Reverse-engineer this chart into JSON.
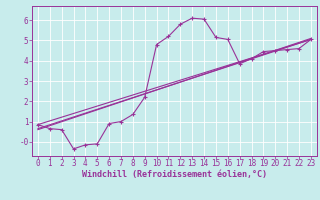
{
  "xlabel": "Windchill (Refroidissement éolien,°C)",
  "bg_color": "#c8ecec",
  "line_color": "#993399",
  "grid_color": "#ffffff",
  "xlim": [
    -0.5,
    23.5
  ],
  "ylim": [
    -0.7,
    6.7
  ],
  "xticks": [
    0,
    1,
    2,
    3,
    4,
    5,
    6,
    7,
    8,
    9,
    10,
    11,
    12,
    13,
    14,
    15,
    16,
    17,
    18,
    19,
    20,
    21,
    22,
    23
  ],
  "yticks": [
    0,
    1,
    2,
    3,
    4,
    5,
    6
  ],
  "ytick_labels": [
    "-0",
    "1",
    "2",
    "3",
    "4",
    "5",
    "6"
  ],
  "line1_x": [
    0,
    1,
    2,
    3,
    4,
    5,
    6,
    7,
    8,
    9,
    10,
    11,
    12,
    13,
    14,
    15,
    16,
    17,
    18,
    19,
    20,
    21,
    22,
    23
  ],
  "line1_y": [
    0.85,
    0.65,
    0.6,
    -0.35,
    -0.15,
    -0.1,
    0.9,
    1.0,
    1.35,
    2.2,
    4.8,
    5.2,
    5.8,
    6.1,
    6.05,
    5.15,
    5.05,
    3.85,
    4.1,
    4.45,
    4.5,
    4.55,
    4.6,
    5.05
  ],
  "line2_x": [
    0,
    23
  ],
  "line2_y": [
    0.85,
    5.05
  ],
  "line3_x": [
    0,
    23
  ],
  "line3_y": [
    0.65,
    5.05
  ],
  "line4_x": [
    0,
    23
  ],
  "line4_y": [
    0.6,
    5.1
  ],
  "tick_fontsize": 5.5,
  "xlabel_fontsize": 6.0,
  "linewidth": 0.8,
  "marker_size": 3.0
}
